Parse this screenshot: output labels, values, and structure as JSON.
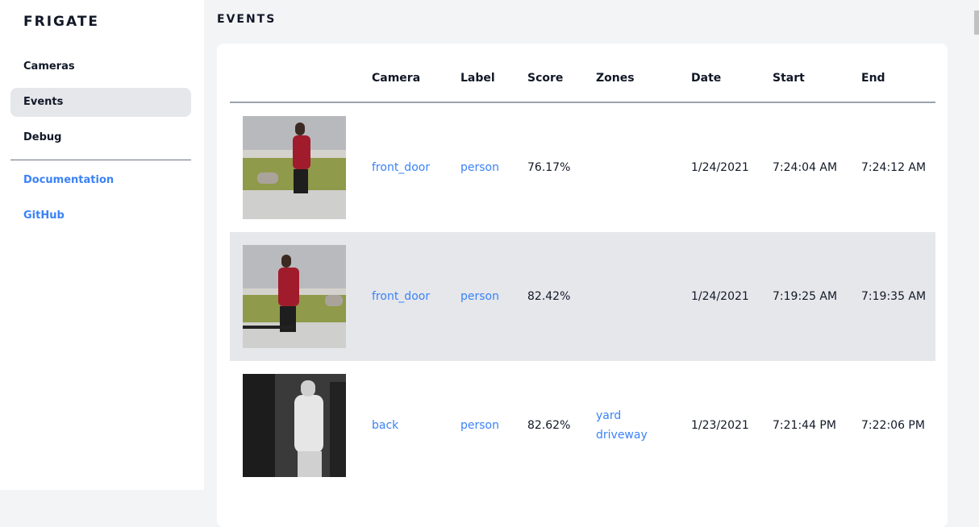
{
  "sidebar": {
    "brand": "FRIGATE",
    "items": [
      {
        "label": "Cameras"
      },
      {
        "label": "Events",
        "active": true
      },
      {
        "label": "Debug"
      }
    ],
    "links": [
      {
        "label": "Documentation"
      },
      {
        "label": "GitHub"
      }
    ]
  },
  "page": {
    "title": "EVENTS"
  },
  "table": {
    "headers": [
      "Camera",
      "Label",
      "Score",
      "Zones",
      "Date",
      "Start",
      "End"
    ],
    "rows": [
      {
        "camera": "front_door",
        "label": "person",
        "score": "76.17%",
        "zones": [
          "",
          ""
        ],
        "date": "1/24/2021",
        "start": "7:24:04 AM",
        "end": "7:24:12 AM"
      },
      {
        "camera": "front_door",
        "label": "person",
        "score": "82.42%",
        "zones": [
          "",
          ""
        ],
        "date": "1/24/2021",
        "start": "7:19:25 AM",
        "end": "7:19:35 AM"
      },
      {
        "camera": "back",
        "label": "person",
        "score": "82.62%",
        "zones": [
          "yard",
          "driveway"
        ],
        "date": "1/23/2021",
        "start": "7:21:44 PM",
        "end": "7:22:06 PM"
      }
    ]
  },
  "colors": {
    "accent": "#3b82f6",
    "active_bg": "#e5e7eb",
    "page_bg": "#f3f4f6"
  }
}
